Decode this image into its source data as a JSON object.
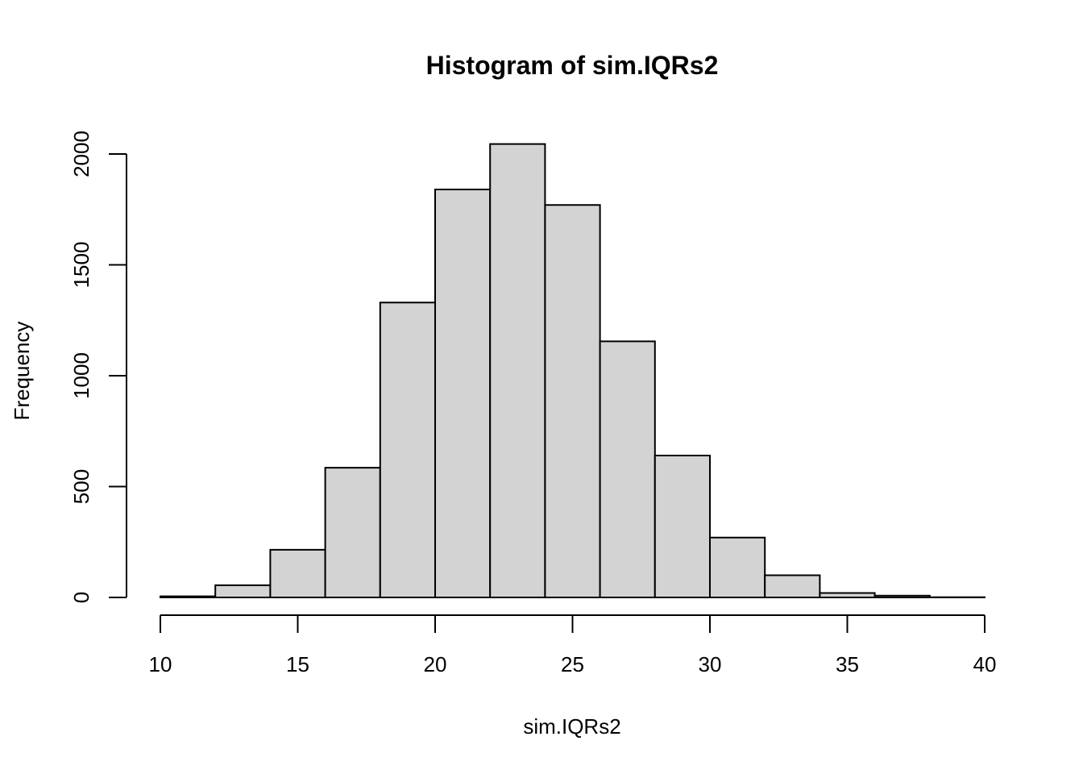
{
  "chart_data": {
    "type": "bar",
    "title": "Histogram of sim.IQRs2",
    "xlabel": "sim.IQRs2",
    "ylabel": "Frequency",
    "bin_edges": [
      10,
      12,
      14,
      16,
      18,
      20,
      22,
      24,
      26,
      28,
      30,
      32,
      34,
      36,
      38,
      40
    ],
    "values": [
      5,
      55,
      215,
      585,
      1330,
      1840,
      2045,
      1770,
      1155,
      640,
      270,
      100,
      20,
      8,
      1
    ],
    "x_ticks": [
      10,
      15,
      20,
      25,
      30,
      35,
      40
    ],
    "y_ticks": [
      0,
      500,
      1000,
      1500,
      2000
    ],
    "xlim": [
      10,
      40
    ],
    "ylim": [
      0,
      2000
    ],
    "grid": false,
    "colors": {
      "bar_fill": "#d3d3d3",
      "bar_stroke": "#000000"
    }
  }
}
